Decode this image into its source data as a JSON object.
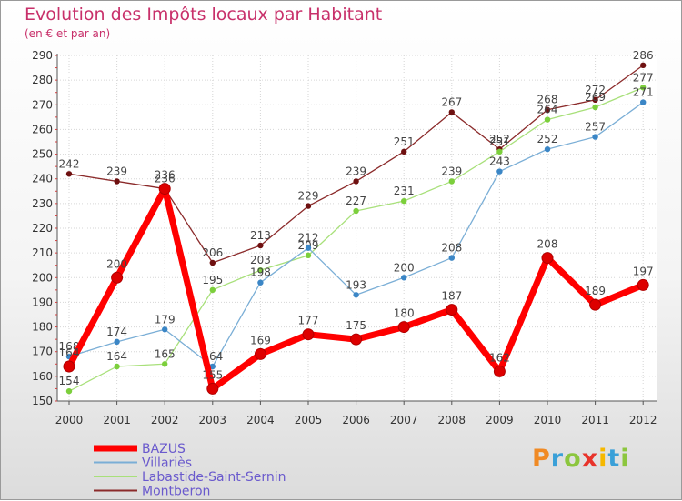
{
  "chart_data": {
    "type": "line",
    "title": "Evolution des Impôts locaux par Habitant",
    "subtitle": "(en € et par an)",
    "xlabel": "",
    "ylabel": "",
    "ylim": [
      150,
      290
    ],
    "yticks": [
      150,
      160,
      170,
      180,
      190,
      200,
      210,
      220,
      230,
      240,
      250,
      260,
      270,
      280,
      290
    ],
    "categories": [
      "2000",
      "2001",
      "2002",
      "2003",
      "2004",
      "2005",
      "2006",
      "2007",
      "2008",
      "2009",
      "2010",
      "2011",
      "2012"
    ],
    "legend_position": "bottom-left",
    "series": [
      {
        "name": "Montberon",
        "color": "#8b2a2a",
        "marker": "#6e1010",
        "values": [
          242,
          239,
          236,
          206,
          213,
          229,
          239,
          251,
          267,
          252,
          268,
          272,
          286
        ]
      },
      {
        "name": "Labastide-Saint-Sernin",
        "color": "#a8e07a",
        "marker": "#7ccf3c",
        "values": [
          154,
          164,
          165,
          195,
          203,
          209,
          227,
          231,
          239,
          251,
          264,
          269,
          277
        ]
      },
      {
        "name": "Villariès",
        "color": "#7aaed6",
        "marker": "#3b86c6",
        "values": [
          168,
          174,
          179,
          164,
          198,
          212,
          193,
          200,
          208,
          243,
          252,
          257,
          271
        ]
      },
      {
        "name": "BAZUS",
        "color": "#ff0000",
        "marker": "#dd0000",
        "values": [
          164,
          200,
          236,
          155,
          169,
          177,
          175,
          180,
          187,
          162,
          208,
          189,
          197
        ]
      }
    ]
  },
  "logo": {
    "letters": [
      "P",
      "r",
      "o",
      "x",
      "i",
      "t",
      "i"
    ]
  }
}
